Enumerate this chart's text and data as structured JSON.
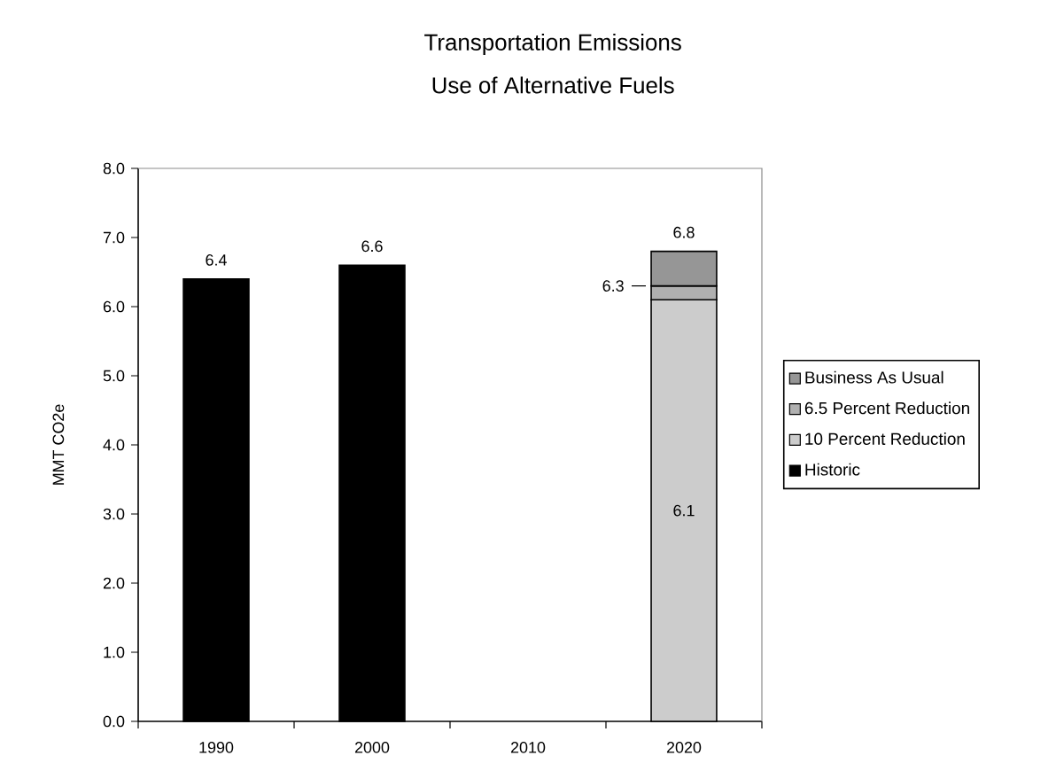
{
  "chart_data": {
    "type": "bar",
    "title": "Transportation Emissions",
    "subtitle": "Use of Alternative Fuels",
    "ylabel": "MMT CO2e",
    "categories": [
      "1990",
      "2000",
      "2010",
      "2020"
    ],
    "stacked": true,
    "series": [
      {
        "name": "Historic",
        "color": "#000000",
        "values": [
          6.4,
          6.6,
          null,
          null
        ],
        "value_labels": [
          "6.4",
          "6.6",
          null,
          null
        ]
      },
      {
        "name": "10 Percent Reduction",
        "color": "#cccccc",
        "values": [
          null,
          null,
          null,
          6.1
        ],
        "value_labels": [
          null,
          null,
          null,
          "6.1"
        ]
      },
      {
        "name": "6.5 Percent Reduction",
        "color": "#b0b0b0",
        "values": [
          null,
          null,
          null,
          0.2
        ]
      },
      {
        "name": "Business As Usual",
        "color": "#969696",
        "values": [
          null,
          null,
          null,
          0.5
        ]
      }
    ],
    "totals": [
      null,
      null,
      null,
      "6.8"
    ],
    "annotations": [
      "6.3"
    ],
    "ylim": [
      0,
      8
    ],
    "yticks": [
      {
        "value": 0,
        "label": "0.0"
      },
      {
        "value": 1,
        "label": "1.0"
      },
      {
        "value": 2,
        "label": "2.0"
      },
      {
        "value": 3,
        "label": "3.0"
      },
      {
        "value": 4,
        "label": "4.0"
      },
      {
        "value": 5,
        "label": "5.0"
      },
      {
        "value": 6,
        "label": "6.0"
      },
      {
        "value": 7,
        "label": "7.0"
      },
      {
        "value": 8,
        "label": "8.0"
      }
    ],
    "legend": "right"
  }
}
